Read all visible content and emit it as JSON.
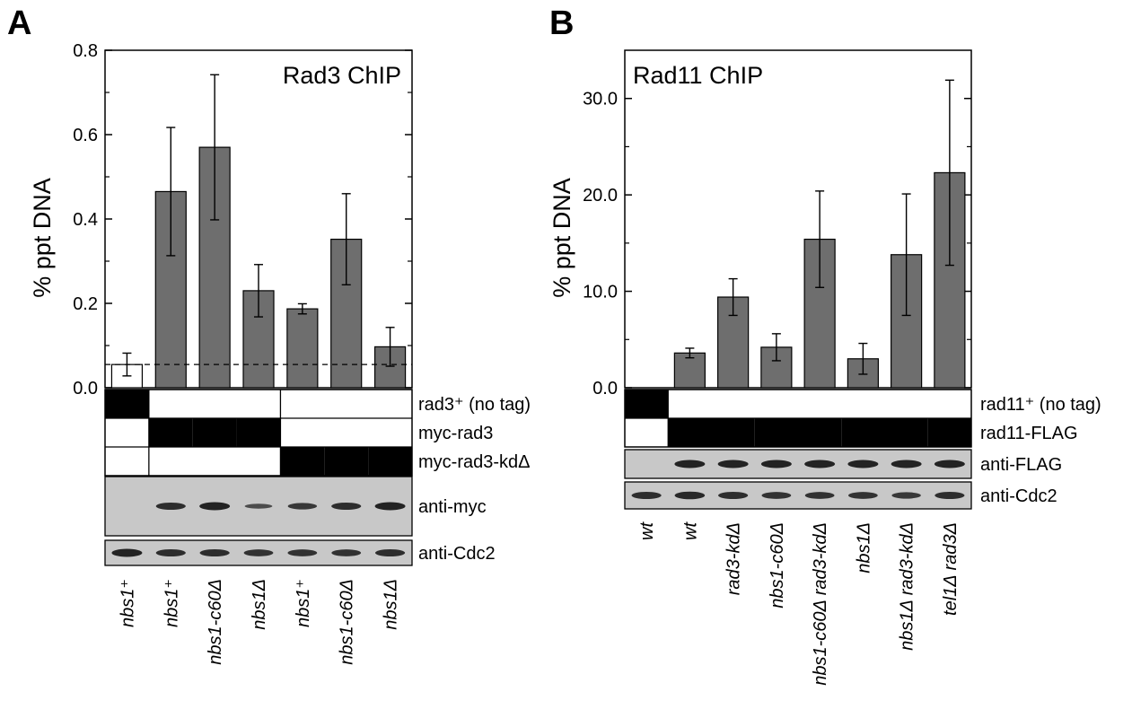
{
  "panels": {
    "A": {
      "letter": "A",
      "chart_data": {
        "type": "bar",
        "title": "Rad3 ChIP",
        "ylabel": "% ppt DNA",
        "ylim": [
          0,
          0.8
        ],
        "yticks": [
          "0.0",
          "0.2",
          "0.4",
          "0.6",
          "0.8"
        ],
        "baseline_dashed": 0.055,
        "categories": [
          "nbs1⁺",
          "nbs1⁺",
          "nbs1-c60Δ",
          "nbs1Δ",
          "nbs1⁺",
          "nbs1-c60Δ",
          "nbs1Δ"
        ],
        "values": [
          0.055,
          0.465,
          0.57,
          0.23,
          0.187,
          0.352,
          0.097
        ],
        "errors": [
          0.027,
          0.152,
          0.172,
          0.062,
          0.012,
          0.108,
          0.046
        ],
        "bar_colors": [
          "#ffffff",
          "#6e6e6e",
          "#6e6e6e",
          "#6e6e6e",
          "#6e6e6e",
          "#6e6e6e",
          "#6e6e6e"
        ]
      },
      "genotype_rows": [
        {
          "label": "rad3⁺ (no tag)",
          "filled": [
            1,
            0,
            0,
            0,
            0,
            0,
            0
          ]
        },
        {
          "label": "myc-rad3",
          "filled": [
            0,
            1,
            1,
            1,
            0,
            0,
            0
          ]
        },
        {
          "label": "myc-rad3-kdΔ",
          "filled": [
            0,
            0,
            0,
            0,
            1,
            1,
            1
          ]
        }
      ],
      "blots": [
        {
          "label": "anti-myc",
          "band_strength": [
            0,
            0.9,
            1.0,
            0.6,
            0.8,
            0.9,
            1.0
          ]
        },
        {
          "label": "anti-Cdc2",
          "band_strength": [
            1.0,
            0.9,
            0.9,
            0.85,
            0.85,
            0.85,
            0.9
          ]
        }
      ]
    },
    "B": {
      "letter": "B",
      "chart_data": {
        "type": "bar",
        "title": "Rad11 ChIP",
        "ylabel": "% ppt DNA",
        "ylim": [
          0,
          35
        ],
        "yticks": [
          "0.0",
          "10.0",
          "20.0",
          "30.0"
        ],
        "categories": [
          "wt",
          "wt",
          "rad3-kdΔ",
          "nbs1-c60Δ",
          "nbs1-c60Δ rad3-kdΔ",
          "nbs1Δ",
          "nbs1Δ rad3-kdΔ",
          "tel1Δ rad3Δ"
        ],
        "values": [
          0,
          3.6,
          9.4,
          4.2,
          15.4,
          3.0,
          13.8,
          22.3
        ],
        "errors": [
          0,
          0.5,
          1.9,
          1.4,
          5.0,
          1.6,
          6.3,
          9.6
        ],
        "bar_colors": [
          "#6e6e6e",
          "#6e6e6e",
          "#6e6e6e",
          "#6e6e6e",
          "#6e6e6e",
          "#6e6e6e",
          "#6e6e6e",
          "#6e6e6e"
        ]
      },
      "genotype_rows": [
        {
          "label": "rad11⁺ (no tag)",
          "filled": [
            1,
            0,
            0,
            0,
            0,
            0,
            0,
            0
          ]
        },
        {
          "label": "rad11-FLAG",
          "filled": [
            0,
            1,
            1,
            1,
            1,
            1,
            1,
            1
          ]
        }
      ],
      "blots": [
        {
          "label": "anti-FLAG",
          "band_strength": [
            0,
            1.0,
            1.0,
            1.0,
            1.0,
            1.0,
            1.0,
            1.0
          ]
        },
        {
          "label": "anti-Cdc2",
          "band_strength": [
            0.9,
            0.95,
            0.9,
            0.85,
            0.85,
            0.85,
            0.8,
            0.9
          ]
        }
      ]
    }
  },
  "colors": {
    "bar_fill": "#6e6e6e",
    "blot_bg": "#c8c8c8",
    "band": "#1a1a1a"
  }
}
